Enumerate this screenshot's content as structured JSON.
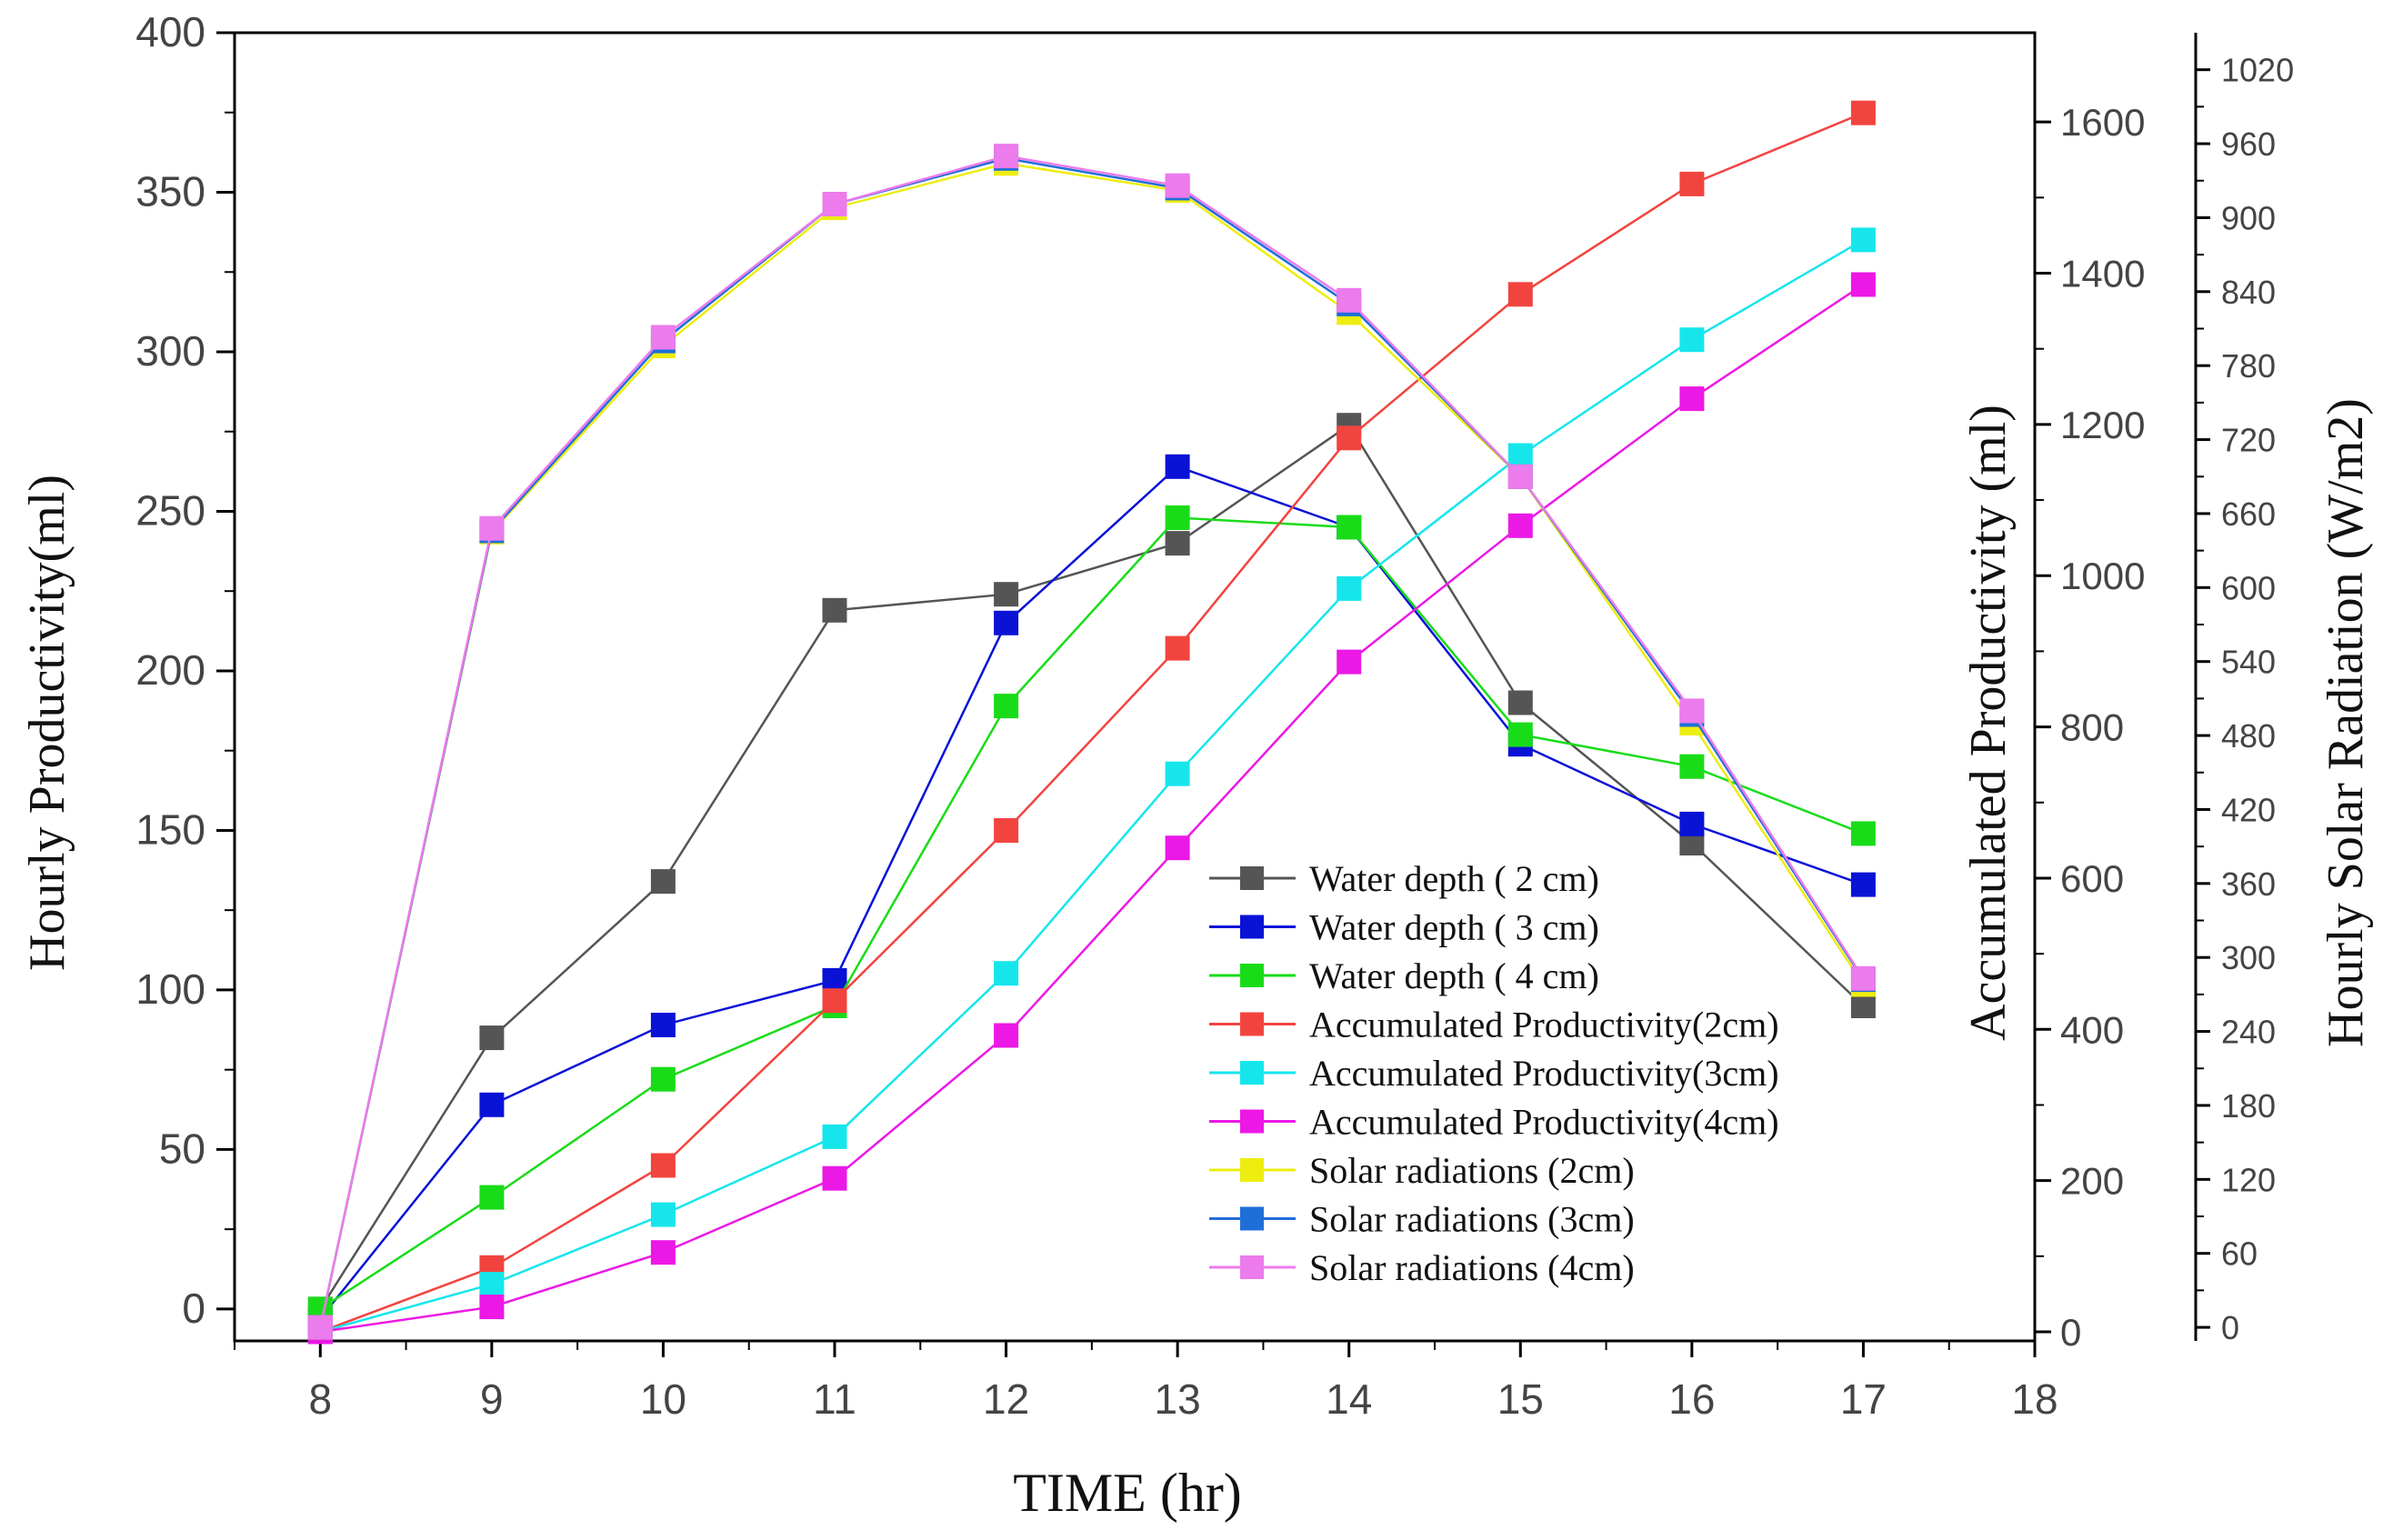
{
  "chart_data": {
    "type": "line",
    "title": "",
    "xlabel": "TIME (hr)",
    "ylabel_left": "Hourly Productivity(ml)",
    "ylabel_right1": "Accumulated Productivity (ml)",
    "ylabel_right2": "Hourly Solar Radiation (W/m2)",
    "xlim": [
      7.5,
      18
    ],
    "ylim_left": [
      -10,
      400
    ],
    "ylim_right1": [
      -12,
      1718
    ],
    "ylim_right2": [
      -11,
      1050
    ],
    "x_ticks": [
      8,
      9,
      10,
      11,
      12,
      13,
      14,
      15,
      16,
      17,
      18
    ],
    "y_left_ticks": [
      0,
      50,
      100,
      150,
      200,
      250,
      300,
      350,
      400
    ],
    "y_right1_ticks": [
      0,
      200,
      400,
      600,
      800,
      1000,
      1200,
      1400,
      1600
    ],
    "y_right2_ticks": [
      0,
      60,
      120,
      180,
      240,
      300,
      360,
      420,
      480,
      540,
      600,
      660,
      720,
      780,
      840,
      900,
      960,
      1020
    ],
    "legend_position": "lower-center",
    "x": [
      8,
      9,
      10,
      11,
      12,
      13,
      14,
      15,
      16,
      17
    ],
    "series": [
      {
        "name": "Water depth ( 2 cm)",
        "axis": "left",
        "color": "#555555",
        "values": [
          0,
          85,
          134,
          219,
          224,
          240,
          277,
          190,
          146,
          95
        ]
      },
      {
        "name": "Water depth ( 3 cm)",
        "axis": "left",
        "color": "#0a12d6",
        "values": [
          -3,
          64,
          89,
          103,
          215,
          264,
          245,
          177,
          152,
          133
        ]
      },
      {
        "name": "Water depth ( 4 cm)",
        "axis": "left",
        "color": "#19dc19",
        "values": [
          0,
          35,
          72,
          95,
          189,
          248,
          245,
          180,
          170,
          149
        ]
      },
      {
        "name": "Accumulated Productivity(2cm)",
        "axis": "right1",
        "color": "#f2443f",
        "values": [
          0,
          85,
          220,
          438,
          663,
          904,
          1182,
          1372,
          1518,
          1612
        ]
      },
      {
        "name": "Accumulated Productivity(3cm)",
        "axis": "right1",
        "color": "#16e6ec",
        "values": [
          0,
          63,
          155,
          258,
          474,
          738,
          983,
          1159,
          1312,
          1444
        ]
      },
      {
        "name": "Accumulated Productivity(4cm)",
        "axis": "right1",
        "color": "#ec18e6",
        "values": [
          0,
          33,
          105,
          203,
          392,
          640,
          886,
          1066,
          1234,
          1385
        ]
      },
      {
        "name": "Solar radiations (2cm)",
        "axis": "right2",
        "color": "#eded10",
        "values": [
          0,
          645,
          796,
          908,
          944,
          922,
          823,
          690,
          490,
          278
        ]
      },
      {
        "name": "Solar radiations (3cm)",
        "axis": "right2",
        "color": "#1f6fd8",
        "values": [
          0,
          646,
          800,
          911,
          948,
          924,
          830,
          690,
          497,
          282
        ]
      },
      {
        "name": "Solar radiations (4cm)",
        "axis": "right2",
        "color": "#ec7bec",
        "values": [
          0,
          648,
          803,
          911,
          950,
          926,
          833,
          690,
          500,
          283
        ]
      }
    ]
  }
}
